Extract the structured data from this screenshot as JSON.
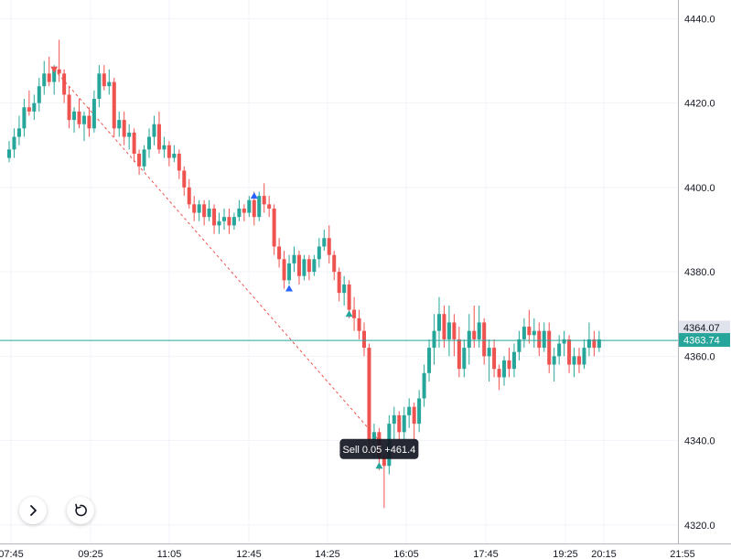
{
  "chart_data": {
    "type": "candlestick",
    "y_ticks": [
      4320,
      4340,
      4360,
      4380,
      4400,
      4420,
      4440
    ],
    "x_ticks": [
      "07:45",
      "09:25",
      "11:05",
      "12:45",
      "14:25",
      "16:05",
      "17:45",
      "19:25",
      "20:15",
      "21:55"
    ],
    "ylim": [
      4318,
      4444
    ],
    "grid": true,
    "colors": {
      "up": "#26a69a",
      "down": "#ef5350",
      "price_line": "#26a69a",
      "label_gray": "#e0e3eb",
      "tooltip_bg": "#131722"
    },
    "candles": [
      [
        4407,
        4411,
        4406,
        4409
      ],
      [
        4409,
        4414,
        4407,
        4412
      ],
      [
        4412,
        4417,
        4410,
        4414
      ],
      [
        4414,
        4421,
        4412,
        4419
      ],
      [
        4419,
        4423,
        4417,
        4418
      ],
      [
        4418,
        4422,
        4416,
        4420
      ],
      [
        4420,
        4426,
        4418,
        4424
      ],
      [
        4424,
        4430,
        4422,
        4427
      ],
      [
        4427,
        4431,
        4424,
        4425
      ],
      [
        4425,
        4429,
        4422,
        4428
      ],
      [
        4428,
        4435,
        4425,
        4427
      ],
      [
        4427,
        4428,
        4420,
        4422
      ],
      [
        4422,
        4424,
        4414,
        4416
      ],
      [
        4416,
        4419,
        4413,
        4418
      ],
      [
        4418,
        4421,
        4414,
        4415
      ],
      [
        4415,
        4418,
        4411,
        4417
      ],
      [
        4417,
        4419,
        4412,
        4414
      ],
      [
        4414,
        4423,
        4413,
        4421
      ],
      [
        4421,
        4429,
        4419,
        4427
      ],
      [
        4427,
        4429,
        4423,
        4424
      ],
      [
        4424,
        4428,
        4422,
        4425
      ],
      [
        4425,
        4426,
        4412,
        4414
      ],
      [
        4414,
        4418,
        4412,
        4416
      ],
      [
        4416,
        4418,
        4410,
        4412
      ],
      [
        4412,
        4415,
        4409,
        4413
      ],
      [
        4413,
        4414,
        4406,
        4408
      ],
      [
        4408,
        4409,
        4403,
        4405
      ],
      [
        4405,
        4410,
        4404,
        4409
      ],
      [
        4409,
        4414,
        4407,
        4412
      ],
      [
        4412,
        4417,
        4410,
        4415
      ],
      [
        4415,
        4418,
        4408,
        4409
      ],
      [
        4409,
        4412,
        4407,
        4410
      ],
      [
        4410,
        4411,
        4405,
        4407
      ],
      [
        4407,
        4410,
        4406,
        4408
      ],
      [
        4408,
        4409,
        4402,
        4404
      ],
      [
        4404,
        4405,
        4398,
        4400
      ],
      [
        4400,
        4402,
        4395,
        4396
      ],
      [
        4396,
        4398,
        4392,
        4394
      ],
      [
        4394,
        4397,
        4392,
        4396
      ],
      [
        4396,
        4397,
        4391,
        4393
      ],
      [
        4393,
        4397,
        4392,
        4395
      ],
      [
        4395,
        4396,
        4389,
        4391
      ],
      [
        4391,
        4394,
        4389,
        4392
      ],
      [
        4392,
        4395,
        4390,
        4393
      ],
      [
        4393,
        4395,
        4389,
        4391
      ],
      [
        4391,
        4394,
        4390,
        4393
      ],
      [
        4393,
        4397,
        4392,
        4395
      ],
      [
        4395,
        4396,
        4392,
        4394
      ],
      [
        4394,
        4398,
        4393,
        4397
      ],
      [
        4397,
        4399,
        4391,
        4393
      ],
      [
        4393,
        4399,
        4392,
        4398
      ],
      [
        4398,
        4401,
        4394,
        4396
      ],
      [
        4396,
        4398,
        4393,
        4395
      ],
      [
        4395,
        4396,
        4384,
        4386
      ],
      [
        4386,
        4388,
        4381,
        4383
      ],
      [
        4383,
        4385,
        4376,
        4378
      ],
      [
        4378,
        4384,
        4377,
        4382
      ],
      [
        4382,
        4386,
        4380,
        4384
      ],
      [
        4384,
        4385,
        4377,
        4379
      ],
      [
        4379,
        4384,
        4378,
        4383
      ],
      [
        4383,
        4384,
        4378,
        4380
      ],
      [
        4380,
        4384,
        4379,
        4383
      ],
      [
        4383,
        4388,
        4381,
        4386
      ],
      [
        4386,
        4390,
        4385,
        4388
      ],
      [
        4388,
        4391,
        4382,
        4384
      ],
      [
        4384,
        4385,
        4378,
        4380
      ],
      [
        4380,
        4381,
        4373,
        4375
      ],
      [
        4375,
        4379,
        4372,
        4377
      ],
      [
        4377,
        4378,
        4369,
        4371
      ],
      [
        4371,
        4374,
        4366,
        4369
      ],
      [
        4369,
        4371,
        4364,
        4366
      ],
      [
        4366,
        4368,
        4360,
        4362
      ],
      [
        4362,
        4363,
        4338,
        4340
      ],
      [
        4340,
        4344,
        4336,
        4342
      ],
      [
        4342,
        4343,
        4333,
        4336
      ],
      [
        4336,
        4337,
        4324,
        4334
      ],
      [
        4334,
        4346,
        4332,
        4344
      ],
      [
        4344,
        4348,
        4340,
        4346
      ],
      [
        4346,
        4347,
        4340,
        4342
      ],
      [
        4342,
        4348,
        4340,
        4346
      ],
      [
        4346,
        4350,
        4343,
        4348
      ],
      [
        4348,
        4349,
        4340,
        4344
      ],
      [
        4344,
        4352,
        4342,
        4350
      ],
      [
        4350,
        4358,
        4348,
        4356
      ],
      [
        4356,
        4364,
        4354,
        4362
      ],
      [
        4362,
        4370,
        4358,
        4366
      ],
      [
        4366,
        4374,
        4362,
        4370
      ],
      [
        4370,
        4372,
        4362,
        4364
      ],
      [
        4364,
        4372,
        4360,
        4368
      ],
      [
        4368,
        4370,
        4360,
        4364
      ],
      [
        4364,
        4367,
        4355,
        4357
      ],
      [
        4357,
        4364,
        4355,
        4362
      ],
      [
        4362,
        4370,
        4358,
        4366
      ],
      [
        4366,
        4372,
        4362,
        4364
      ],
      [
        4364,
        4372,
        4362,
        4368
      ],
      [
        4368,
        4369,
        4358,
        4360
      ],
      [
        4360,
        4364,
        4354,
        4362
      ],
      [
        4362,
        4364,
        4355,
        4357
      ],
      [
        4357,
        4358,
        4352,
        4355
      ],
      [
        4355,
        4360,
        4353,
        4359
      ],
      [
        4359,
        4362,
        4355,
        4357
      ],
      [
        4357,
        4363,
        4355,
        4361
      ],
      [
        4361,
        4366,
        4359,
        4364
      ],
      [
        4364,
        4369,
        4362,
        4367
      ],
      [
        4367,
        4371,
        4363,
        4365
      ],
      [
        4365,
        4369,
        4362,
        4366
      ],
      [
        4366,
        4368,
        4360,
        4362
      ],
      [
        4362,
        4368,
        4361,
        4366
      ],
      [
        4366,
        4368,
        4356,
        4358
      ],
      [
        4358,
        4362,
        4354,
        4360
      ],
      [
        4360,
        4365,
        4358,
        4363
      ],
      [
        4363,
        4366,
        4360,
        4364
      ],
      [
        4364,
        4365,
        4356,
        4358
      ],
      [
        4358,
        4362,
        4355,
        4360
      ],
      [
        4360,
        4362,
        4356,
        4358
      ],
      [
        4358,
        4364,
        4357,
        4362
      ],
      [
        4362,
        4368,
        4360,
        4364
      ],
      [
        4364,
        4366,
        4360,
        4362
      ],
      [
        4362,
        4366,
        4361,
        4364
      ]
    ],
    "markers": [
      {
        "index": 9,
        "price": 4428,
        "shape": "down",
        "color": "#ef5350"
      },
      {
        "index": 49,
        "price": 4398,
        "shape": "up",
        "color": "#2962ff"
      },
      {
        "index": 56,
        "price": 4376,
        "shape": "up",
        "color": "#2962ff"
      },
      {
        "index": 68,
        "price": 4370,
        "shape": "up",
        "color": "#26a69a"
      },
      {
        "index": 74,
        "price": 4334,
        "shape": "up",
        "color": "#26a69a"
      }
    ],
    "trade_line": {
      "from_index": 9,
      "from_price": 4428,
      "to_index": 74,
      "to_price": 4340,
      "color": "#ef5350"
    },
    "tooltip": {
      "text": "Sell 0.05 +461.4",
      "index": 74,
      "price": 4338
    },
    "price_labels": [
      {
        "value": "4364.07",
        "price": 4364.07,
        "style": "gray"
      },
      {
        "value": "4363.74",
        "price": 4363.74,
        "style": "green"
      }
    ],
    "current_price": 4363.74
  }
}
